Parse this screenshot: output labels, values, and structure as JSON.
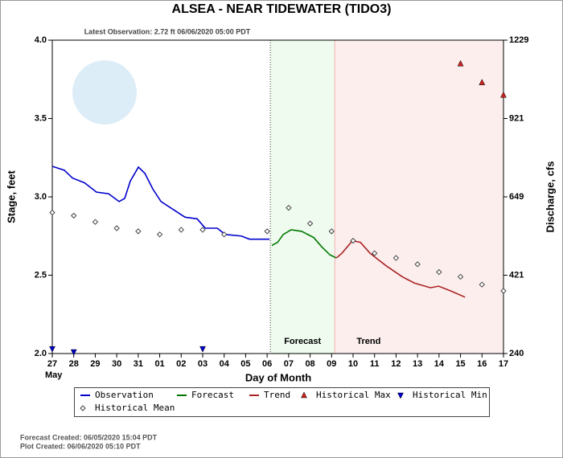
{
  "chart_data": {
    "type": "line",
    "title": "ALSEA - NEAR TIDEWATER  (TIDO3)",
    "subtitle": "Latest Observation: 2.72 ft 06/06/2020 05:00 PDT",
    "ylabel": "Stage, feet",
    "y2label": "Discharge, cfs",
    "xlabel": "Day of Month",
    "x_sublabel": "May",
    "xlim": [
      0,
      21
    ],
    "xticks": [
      {
        "value": 0,
        "label": "27"
      },
      {
        "value": 1,
        "label": "28"
      },
      {
        "value": 2,
        "label": "29"
      },
      {
        "value": 3,
        "label": "30"
      },
      {
        "value": 4,
        "label": "31"
      },
      {
        "value": 5,
        "label": "01"
      },
      {
        "value": 6,
        "label": "02"
      },
      {
        "value": 7,
        "label": "03"
      },
      {
        "value": 8,
        "label": "04"
      },
      {
        "value": 9,
        "label": "05"
      },
      {
        "value": 10,
        "label": "06"
      },
      {
        "value": 11,
        "label": "07"
      },
      {
        "value": 12,
        "label": "08"
      },
      {
        "value": 13,
        "label": "09"
      },
      {
        "value": 14,
        "label": "10"
      },
      {
        "value": 15,
        "label": "11"
      },
      {
        "value": 16,
        "label": "12"
      },
      {
        "value": 17,
        "label": "13"
      },
      {
        "value": 18,
        "label": "14"
      },
      {
        "value": 19,
        "label": "15"
      },
      {
        "value": 20,
        "label": "16"
      },
      {
        "value": 21,
        "label": "17"
      }
    ],
    "ylim": [
      2.0,
      4.0
    ],
    "yticks": [
      {
        "value": 2,
        "label": "2.0"
      },
      {
        "value": 2.5,
        "label": "2.5"
      },
      {
        "value": 3,
        "label": "3.0"
      },
      {
        "value": 3.5,
        "label": "3.5"
      },
      {
        "value": 4,
        "label": "4.0"
      }
    ],
    "y2ticks": [
      240,
      421,
      649,
      921,
      1229
    ],
    "regions": [
      {
        "name": "Forecast",
        "xlim": [
          10.15,
          13.15
        ],
        "color": "#eefbee"
      },
      {
        "name": "Trend",
        "xlim": [
          13.15,
          21
        ],
        "color": "#fdeeee"
      }
    ],
    "series": [
      {
        "name": "Observation",
        "color": "#0000cc",
        "marker": "line",
        "x": [
          0,
          0.56,
          0.94,
          1.5,
          2.06,
          2.62,
          3.11,
          3.37,
          3.63,
          4.01,
          4.31,
          4.68,
          5.06,
          5.62,
          6.18,
          6.74,
          7.12,
          7.68,
          8.05,
          8.8,
          9.18,
          10.11
        ],
        "values": [
          3.195,
          3.17,
          3.12,
          3.09,
          3.03,
          3.02,
          2.97,
          2.99,
          3.1,
          3.19,
          3.15,
          3.05,
          2.97,
          2.92,
          2.87,
          2.86,
          2.8,
          2.8,
          2.76,
          2.75,
          2.73,
          2.73
        ]
      },
      {
        "name": "Forecast",
        "color": "#007700",
        "marker": "line",
        "x": [
          10.22,
          10.49,
          10.75,
          11.12,
          11.61,
          12.17,
          12.55,
          12.92,
          13.22
        ],
        "values": [
          2.69,
          2.71,
          2.76,
          2.79,
          2.78,
          2.74,
          2.68,
          2.63,
          2.61
        ]
      },
      {
        "name": "Trend",
        "color": "#aa2222",
        "marker": "line",
        "x": [
          13.22,
          13.48,
          13.97,
          14.34,
          14.79,
          15.54,
          16.29,
          16.85,
          17.6,
          17.98,
          18.54,
          19.21
        ],
        "values": [
          2.61,
          2.64,
          2.72,
          2.71,
          2.64,
          2.56,
          2.49,
          2.45,
          2.42,
          2.43,
          2.4,
          2.36
        ]
      },
      {
        "name": "Historical Max",
        "color": "#cc2222",
        "marker": "triangle-up",
        "x": [
          19,
          20,
          21
        ],
        "values": [
          3.85,
          3.73,
          3.65
        ]
      },
      {
        "name": "Historical Min",
        "color": "#0000cc",
        "marker": "triangle-down",
        "x": [
          0,
          1,
          7
        ],
        "values": [
          2.03,
          2.01,
          2.03
        ]
      },
      {
        "name": "Historical Mean",
        "color": "#444444",
        "marker": "diamond",
        "x": [
          0,
          1,
          2,
          3,
          4,
          5,
          6,
          7,
          8,
          10,
          11,
          12,
          13,
          14,
          15,
          16,
          17,
          18,
          19,
          20,
          21
        ],
        "values": [
          2.9,
          2.88,
          2.84,
          2.8,
          2.78,
          2.76,
          2.79,
          2.79,
          2.76,
          2.78,
          2.93,
          2.83,
          2.78,
          2.72,
          2.64,
          2.61,
          2.57,
          2.52,
          2.49,
          2.44,
          2.4
        ]
      }
    ],
    "footer": [
      "Forecast Created: 06/05/2020 15:04 PDT",
      "Plot Created: 06/06/2020 05:10 PDT"
    ]
  }
}
